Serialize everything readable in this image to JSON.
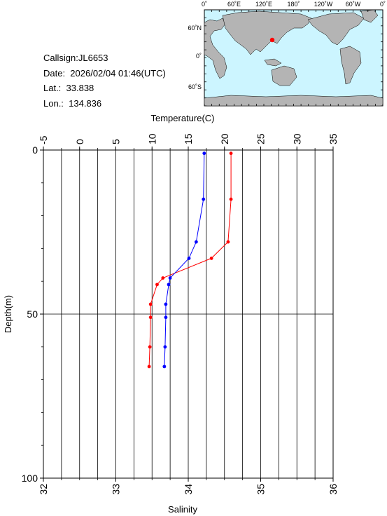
{
  "info": {
    "callsign": "Callsign:JL6653",
    "date": "Date:  2026/02/04 01:46(UTC)",
    "lat": "Lat.:  33.838",
    "lon": "Lon.:  134.836"
  },
  "map": {
    "top_labels": [
      "0˚",
      "60˚E",
      "120˚E",
      "180˚",
      "120˚W",
      "60˚W",
      "0˚"
    ],
    "left_labels": [
      "60˚N",
      "0˚",
      "60˚S"
    ],
    "ocean_color": "#ccf5ff",
    "land_color": "#b4b4b4",
    "marker_color": "#ff0000"
  },
  "chart_data": {
    "type": "line",
    "title": "",
    "temperature_axis": {
      "label": "Temperature(C)",
      "range": [
        -5,
        35
      ],
      "ticks": [
        "-5",
        "0",
        "5",
        "10",
        "15",
        "20",
        "25",
        "30",
        "35"
      ]
    },
    "salinity_axis": {
      "label": "Salinity",
      "range": [
        32,
        36
      ],
      "ticks": [
        "32",
        "33",
        "34",
        "35",
        "36"
      ]
    },
    "depth_axis": {
      "label": "Depth(m)",
      "range": [
        0,
        100
      ],
      "reversed": true,
      "ticks": [
        "0",
        "50",
        "100"
      ]
    },
    "grid": true,
    "series": [
      {
        "kind": "temperature",
        "color": "#ff0000",
        "points": [
          [
            20.9,
            1
          ],
          [
            20.9,
            15
          ],
          [
            20.5,
            28
          ],
          [
            18.2,
            33
          ],
          [
            11.5,
            39
          ],
          [
            10.7,
            41
          ],
          [
            9.8,
            47
          ],
          [
            9.8,
            51
          ],
          [
            9.7,
            60
          ],
          [
            9.6,
            66
          ]
        ]
      },
      {
        "kind": "salinity",
        "color": "#0000ff",
        "points": [
          [
            34.22,
            1
          ],
          [
            34.21,
            15
          ],
          [
            34.11,
            28
          ],
          [
            34.01,
            33
          ],
          [
            33.75,
            39
          ],
          [
            33.73,
            41
          ],
          [
            33.69,
            47
          ],
          [
            33.69,
            51
          ],
          [
            33.68,
            60
          ],
          [
            33.67,
            66
          ]
        ]
      }
    ]
  }
}
